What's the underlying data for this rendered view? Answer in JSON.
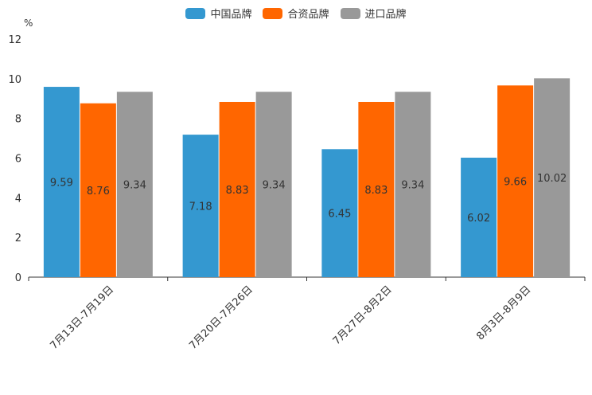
{
  "chart_data": {
    "type": "bar",
    "title": "",
    "xlabel": "",
    "ylabel": "%",
    "ylim": [
      0,
      12
    ],
    "yticks": [
      0,
      2,
      4,
      6,
      8,
      10,
      12
    ],
    "categories": [
      "7月13日-7月19日",
      "7月20日-7月26日",
      "7月27日-8月2日",
      "8月3日-8月9日"
    ],
    "series": [
      {
        "name": "中国品牌",
        "color": "#3498d0",
        "values": [
          9.59,
          7.18,
          6.45,
          6.02
        ]
      },
      {
        "name": "合资品牌",
        "color": "#ff6600",
        "values": [
          8.76,
          8.83,
          8.83,
          9.66
        ]
      },
      {
        "name": "进口品牌",
        "color": "#999999",
        "values": [
          9.34,
          9.34,
          9.34,
          10.02
        ]
      }
    ],
    "legend_position": "top-center",
    "grid": false
  }
}
